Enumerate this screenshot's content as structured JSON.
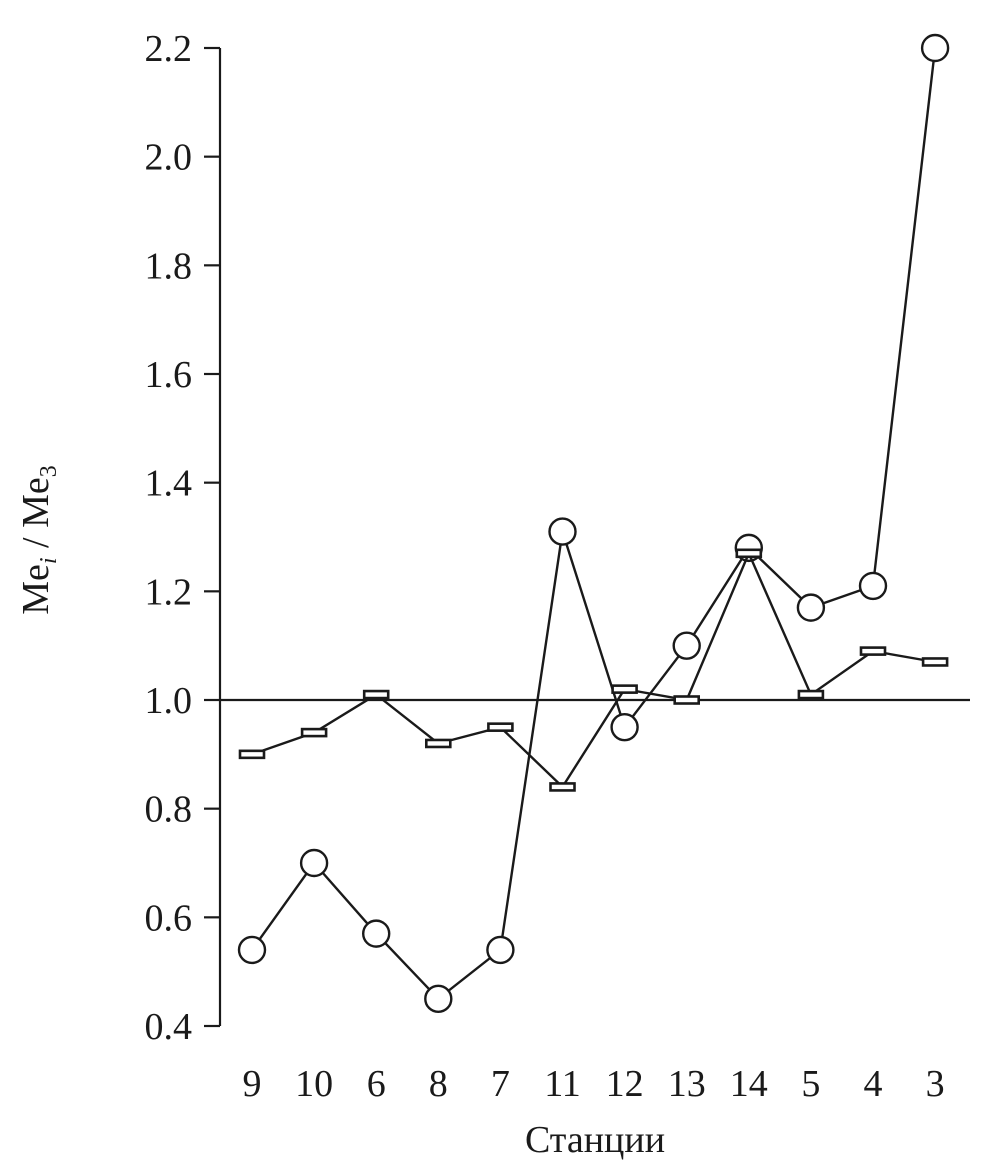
{
  "chart_data": {
    "type": "line",
    "ylabel": {
      "main": "Me",
      "sub1": "i",
      "sep": " / Me",
      "sub2": "3"
    },
    "xlabel": "Станции",
    "categories": [
      "9",
      "10",
      "6",
      "8",
      "7",
      "11",
      "12",
      "13",
      "14",
      "5",
      "4",
      "3"
    ],
    "yticks": [
      "0.4",
      "0.6",
      "0.8",
      "1.0",
      "1.2",
      "1.4",
      "1.6",
      "1.8",
      "2.0",
      "2.2"
    ],
    "ylim": [
      0.4,
      2.2
    ],
    "reference_line": 1.0,
    "grid": false,
    "series": [
      {
        "marker": "circle",
        "values": [
          0.54,
          0.7,
          0.57,
          0.45,
          0.54,
          1.31,
          0.95,
          1.1,
          1.28,
          1.17,
          1.21,
          2.2
        ]
      },
      {
        "marker": "dash",
        "values": [
          0.9,
          0.94,
          1.01,
          0.92,
          0.95,
          0.84,
          1.02,
          1.0,
          1.27,
          1.01,
          1.09,
          1.07
        ]
      }
    ],
    "colors": {
      "ink": "#1a1a1a",
      "background": "#ffffff"
    }
  }
}
